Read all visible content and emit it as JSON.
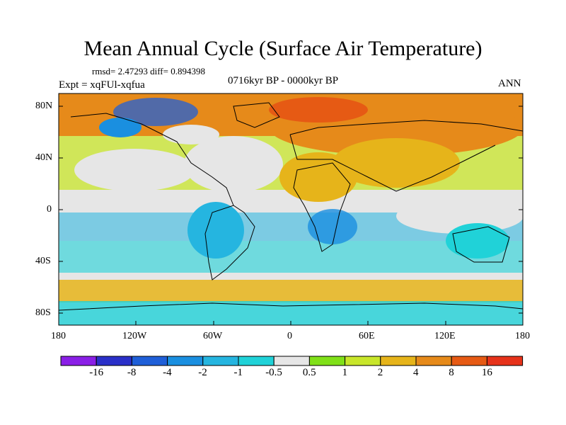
{
  "title": "Mean Annual Cycle (Surface Air Temperature)",
  "stats": "rmsd= 2.47293 diff= 0.894398",
  "experiment": "Expt = xqFUl-xqfua",
  "period": "0716kyr BP - 0000kyr BP",
  "season": "ANN",
  "y_axis_labels": [
    "80N",
    "40N",
    "0",
    "40S",
    "80S"
  ],
  "x_axis_labels": [
    "180",
    "120W",
    "60W",
    "0",
    "60E",
    "120E",
    "180"
  ],
  "colorbar": {
    "labels": [
      "-16",
      "-8",
      "-4",
      "-2",
      "-1",
      "-0.5",
      "0.5",
      "1",
      "2",
      "4",
      "8",
      "16"
    ],
    "colors": [
      "#8a1fe6",
      "#2a30c8",
      "#1f5fd8",
      "#1a8fe0",
      "#25b5e0",
      "#20d2d8",
      "#e6e6e6",
      "#80e018",
      "#c8e62a",
      "#e6b41a",
      "#e68a1a",
      "#e65a14",
      "#e6321a"
    ]
  }
}
